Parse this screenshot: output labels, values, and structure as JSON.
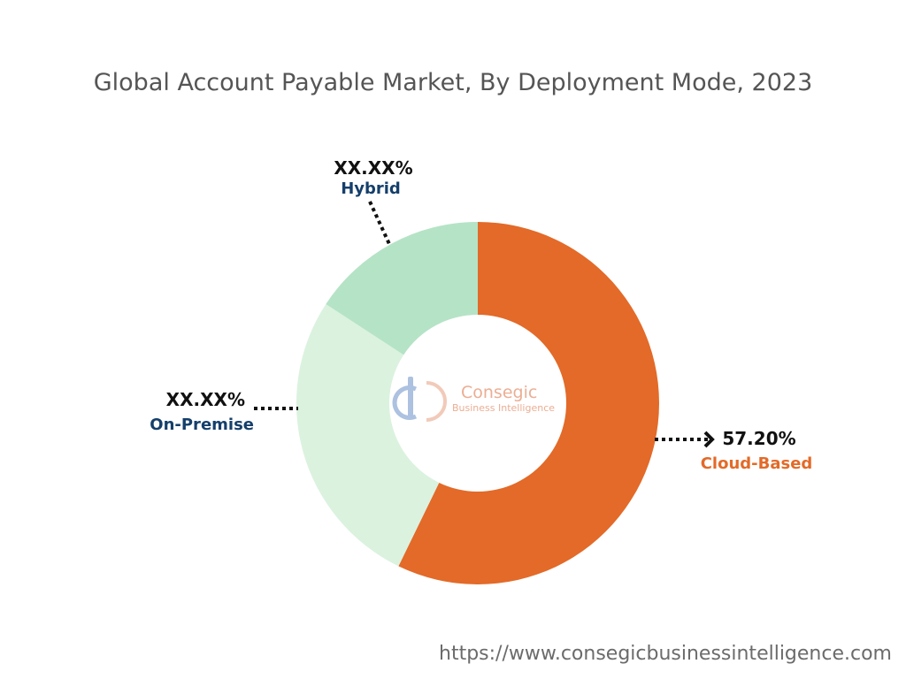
{
  "chart_data": {
    "type": "pie",
    "title": "Global Account Payable Market, By Deployment Mode, 2023",
    "slices": [
      {
        "label": "Cloud-Based",
        "value": 57.2,
        "value_label": "57.20%",
        "color": "#e36a28",
        "label_color": "#e36a28"
      },
      {
        "label": "On-Premise",
        "value": 27.0,
        "value_label": "XX.XX%",
        "color": "#dbf2df",
        "label_color": "#153f6b"
      },
      {
        "label": "Hybrid",
        "value": 15.8,
        "value_label": "XX.XX%",
        "color": "#b5e3c6",
        "label_color": "#153f6b"
      }
    ],
    "donut": true
  },
  "logo": {
    "name": "Consegic",
    "tagline": "Business Intelligence"
  },
  "footer": {
    "url": "https://www.consegicbusinessintelligence.com"
  }
}
